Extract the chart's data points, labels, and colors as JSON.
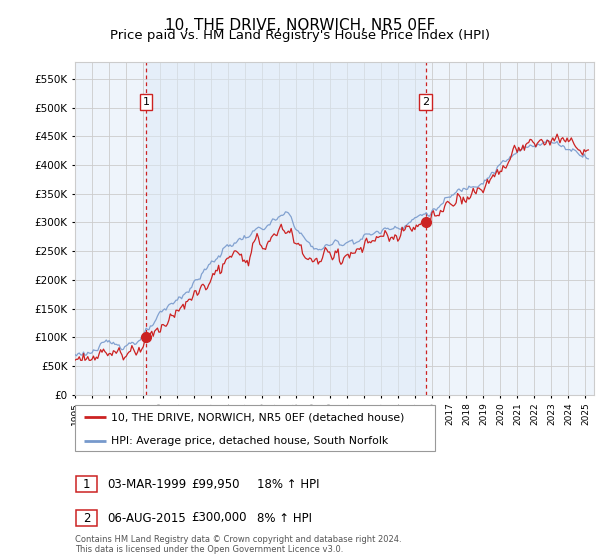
{
  "title": "10, THE DRIVE, NORWICH, NR5 0EF",
  "subtitle": "Price paid vs. HM Land Registry's House Price Index (HPI)",
  "ytick_values": [
    0,
    50000,
    100000,
    150000,
    200000,
    250000,
    300000,
    350000,
    400000,
    450000,
    500000,
    550000
  ],
  "ylim": [
    0,
    580000
  ],
  "xlim_start": 1995.0,
  "xlim_end": 2025.5,
  "hpi_color": "#7799CC",
  "price_color": "#CC2222",
  "sale1_date": 1999.17,
  "sale1_price": 99950,
  "sale1_label": "1",
  "sale2_date": 2015.6,
  "sale2_price": 300000,
  "sale2_label": "2",
  "legend_price_label": "10, THE DRIVE, NORWICH, NR5 0EF (detached house)",
  "legend_hpi_label": "HPI: Average price, detached house, South Norfolk",
  "annotation1_date": "03-MAR-1999",
  "annotation1_price": "£99,950",
  "annotation1_hpi": "18% ↑ HPI",
  "annotation2_date": "06-AUG-2015",
  "annotation2_price": "£300,000",
  "annotation2_hpi": "8% ↑ HPI",
  "footer": "Contains HM Land Registry data © Crown copyright and database right 2024.\nThis data is licensed under the Open Government Licence v3.0.",
  "background_color": "#FFFFFF",
  "plot_bg_color": "#EEF4FB",
  "grid_color": "#CCCCCC",
  "title_fontsize": 11,
  "subtitle_fontsize": 9.5
}
